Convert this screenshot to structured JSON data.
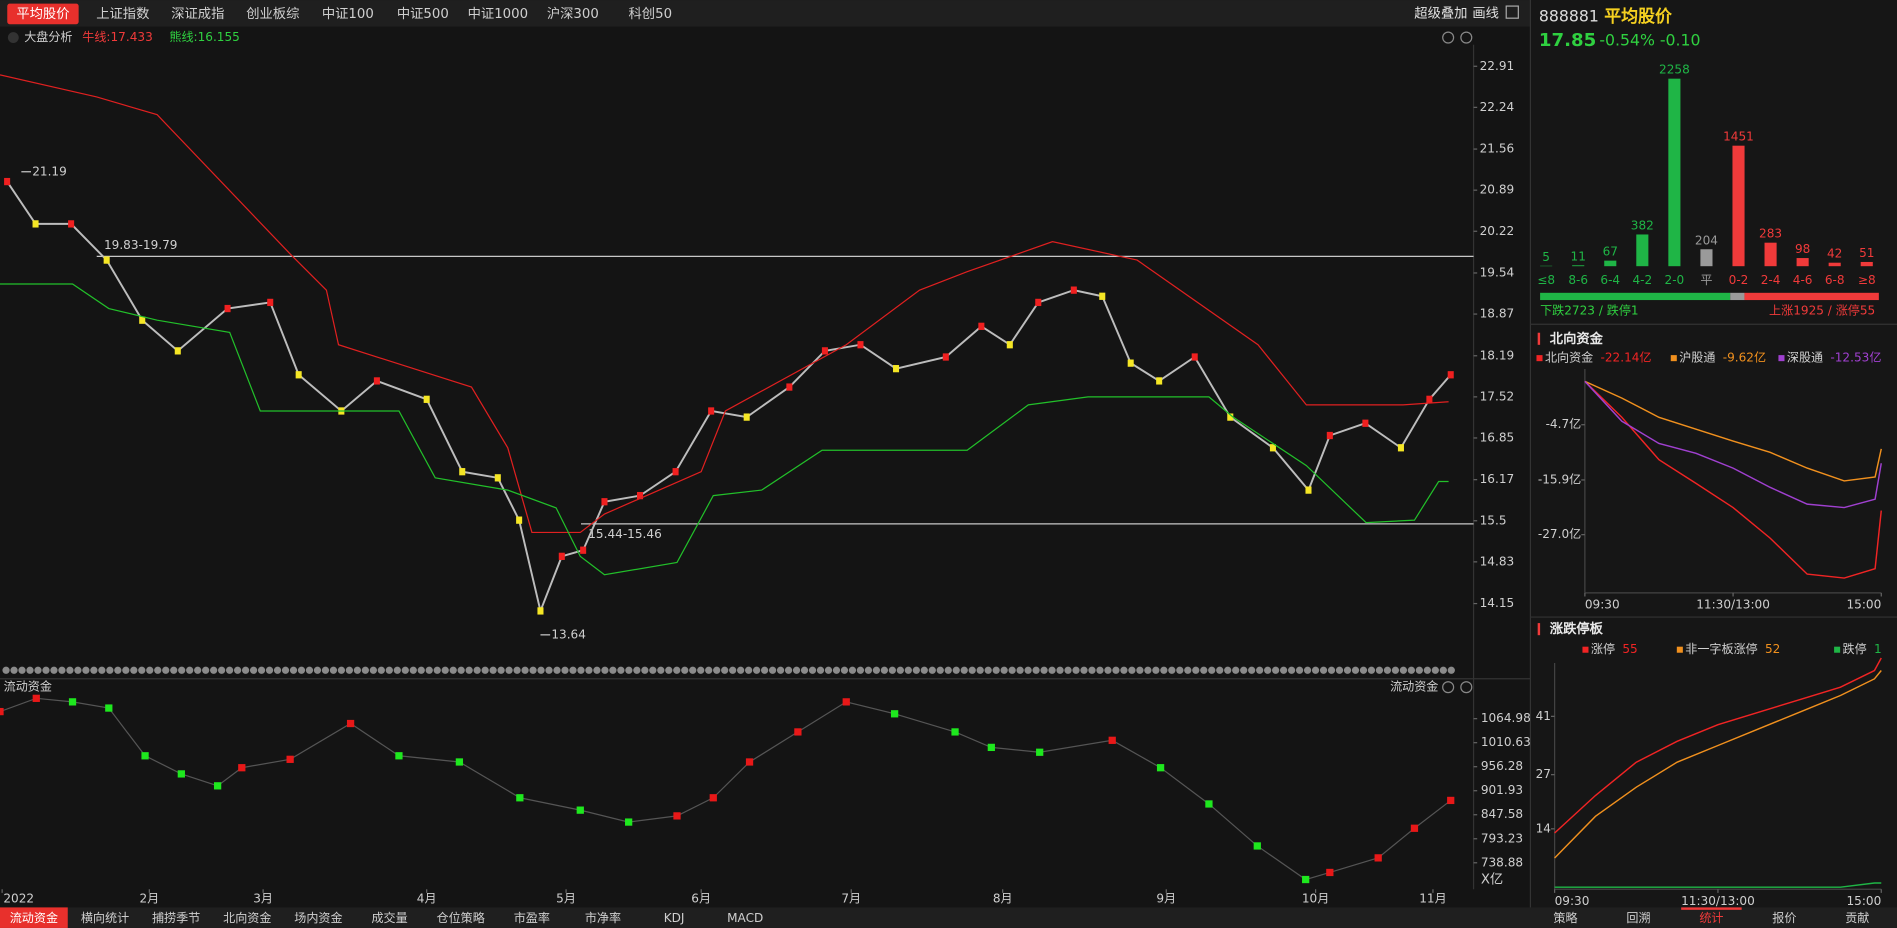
{
  "tabs": [
    "平均股价",
    "上证指数",
    "深证成指",
    "创业板综",
    "中证100",
    "中证500",
    "中证1000",
    "沪深300",
    "科创50"
  ],
  "tools": [
    "超级叠加",
    "画线"
  ],
  "main_chart": {
    "type": "line",
    "title": "大盘分析",
    "bull_label": "牛线:17.433",
    "bear_label": "熊线:16.155",
    "xlim": [
      0,
      205
    ],
    "ylim": [
      13.24,
      23.26
    ],
    "yticks": [
      22.91,
      22.24,
      21.56,
      20.89,
      20.22,
      19.54,
      18.87,
      18.19,
      17.52,
      16.85,
      16.17,
      15.5,
      14.83,
      14.15
    ],
    "xticks": [
      {
        "value": 0.3,
        "label": "2022"
      },
      {
        "value": 21,
        "label": "2月"
      },
      {
        "value": 37,
        "label": "3月"
      },
      {
        "value": 60,
        "label": "4月"
      },
      {
        "value": 79.6,
        "label": "5月"
      },
      {
        "value": 98.6,
        "label": "6月"
      },
      {
        "value": 119.7,
        "label": "7月"
      },
      {
        "value": 141,
        "label": "8月"
      },
      {
        "value": 164,
        "label": "9月"
      },
      {
        "value": 185,
        "label": "10月"
      },
      {
        "value": 201.5,
        "label": "11月"
      }
    ],
    "series": [
      {
        "color": "#bdbdbd",
        "x": [
          1,
          5,
          10,
          15,
          20,
          25,
          32,
          38,
          42,
          48,
          53,
          60,
          65,
          70,
          73,
          76,
          79,
          82,
          85,
          90,
          95,
          100,
          105,
          111,
          116,
          121,
          126,
          133,
          138,
          142,
          146,
          151,
          155,
          159,
          163,
          168,
          173,
          179,
          184,
          187,
          192,
          197,
          201,
          204
        ],
        "values": [
          21.03,
          20.34,
          20.34,
          19.75,
          18.77,
          18.27,
          18.96,
          19.06,
          17.88,
          17.29,
          17.78,
          17.48,
          16.3,
          16.2,
          15.51,
          14.03,
          14.92,
          15.02,
          15.81,
          15.91,
          16.3,
          17.29,
          17.19,
          17.68,
          18.27,
          18.37,
          17.98,
          18.17,
          18.67,
          18.37,
          19.06,
          19.26,
          19.16,
          18.07,
          17.78,
          18.17,
          17.19,
          16.69,
          16.0,
          16.89,
          17.09,
          16.69,
          17.48,
          17.88
        ]
      },
      {
        "color": "#e02020",
        "x": [
          0,
          13.6,
          22.1,
          40.8,
          45.9,
          47.6,
          66.3,
          71.4,
          74.8,
          81.6,
          85,
          98.6,
          102,
          119,
          129.3,
          136,
          148,
          159.9,
          176.9,
          183.7,
          197.3,
          203.7
        ],
        "values": [
          22.77,
          22.41,
          22.12,
          19.85,
          19.26,
          18.37,
          17.68,
          16.69,
          15.31,
          15.31,
          15.61,
          16.3,
          17.29,
          18.37,
          19.26,
          19.56,
          20.05,
          19.75,
          18.37,
          17.39,
          17.39,
          17.44
        ]
      },
      {
        "color": "#22c02a",
        "x": [
          0,
          10.2,
          15.3,
          22.1,
          32.3,
          36.6,
          56.1,
          61.2,
          71.4,
          78.2,
          81.6,
          85,
          95.2,
          100.3,
          107.1,
          115.6,
          136,
          144.6,
          153,
          170,
          173.4,
          183.7,
          192.1,
          198.9,
          202.3,
          203.7
        ],
        "values": [
          19.36,
          19.36,
          18.96,
          18.77,
          18.57,
          17.29,
          17.29,
          16.2,
          16.0,
          15.71,
          14.92,
          14.62,
          14.82,
          15.91,
          16.0,
          16.65,
          16.65,
          17.39,
          17.52,
          17.52,
          17.19,
          16.4,
          15.47,
          15.51,
          16.14,
          16.14
        ]
      }
    ],
    "levels": [
      {
        "label": "19.83-19.79",
        "value": 19.81,
        "x": 13.6
      },
      {
        "label": "15.44-15.46",
        "value": 15.45,
        "x": 81.7
      }
    ],
    "extremes": [
      {
        "value": 21.19,
        "x": 3
      },
      {
        "value": 13.64,
        "x": 76
      }
    ]
  },
  "flow_chart": {
    "type": "line",
    "title": "流动资金",
    "unit": "X亿",
    "ylim": [
      679,
      1117
    ],
    "yticks": [
      1064.98,
      1010.63,
      956.28,
      901.93,
      847.58,
      793.23,
      738.88
    ],
    "x": [
      0,
      5.1,
      10.2,
      15.3,
      20.4,
      25.5,
      30.6,
      34,
      40.8,
      49.3,
      56.1,
      64.6,
      73.1,
      81.6,
      88.4,
      95.2,
      100.3,
      105.4,
      112.2,
      119,
      125.8,
      134.3,
      139.4,
      146.2,
      156.4,
      163.2,
      170,
      176.8,
      183.6,
      187,
      193.8,
      198.9,
      204
    ],
    "values": [
      1081,
      1111,
      1103,
      1089,
      981,
      940,
      913,
      954,
      973,
      1054,
      981,
      967,
      886,
      858,
      831,
      845,
      886,
      967,
      1035,
      1103,
      1076,
      1035,
      1000,
      989,
      1016,
      954,
      872,
      777,
      701,
      717,
      750,
      817,
      880
    ]
  },
  "quote": {
    "code": "888881",
    "name": "平均股价",
    "price": "17.85",
    "change_pct": "-0.54%",
    "change": "-0.10"
  },
  "distribution": {
    "type": "bar",
    "categories": [
      "≤8",
      "8-6",
      "6-4",
      "4-2",
      "2-0",
      "平",
      "0-2",
      "2-4",
      "4-6",
      "6-8",
      "≥8"
    ],
    "values": [
      5,
      11,
      67,
      382,
      2258,
      204,
      1451,
      283,
      98,
      42,
      51
    ],
    "colors": [
      "#1fb546",
      "#1fb546",
      "#1fb546",
      "#1fb546",
      "#1fb546",
      "#9a9a9a",
      "#f03a3a",
      "#f03a3a",
      "#f03a3a",
      "#f03a3a",
      "#f03a3a"
    ],
    "down_label": "下跌2723 / 跌停1",
    "up_label": "上涨1925 / 涨停55"
  },
  "north": {
    "type": "line",
    "title": "北向资金",
    "xlim": [
      0,
      240
    ],
    "ylim": [
      -38.8,
      6.6
    ],
    "yticks": [
      {
        "value": -4.7,
        "label": "-4.7亿"
      },
      {
        "value": -15.9,
        "label": "-15.9亿"
      },
      {
        "value": -27.0,
        "label": "-27.0亿"
      }
    ],
    "xticks": [
      {
        "value": 0,
        "label": "09:30"
      },
      {
        "value": 120,
        "label": "11:30/13:00"
      },
      {
        "value": 240,
        "label": "15:00"
      }
    ],
    "x": [
      0,
      30,
      60,
      90,
      120,
      150,
      180,
      210,
      235,
      240
    ],
    "series": [
      {
        "name": "北向资金",
        "value_label": "-22.14亿",
        "color": "#f02424",
        "values": [
          4.1,
          -3.2,
          -11.8,
          -16.6,
          -21.5,
          -27.7,
          -35.0,
          -35.8,
          -33.9,
          -22.1
        ]
      },
      {
        "name": "沪股通",
        "value_label": "-9.62亿",
        "color": "#f0901e",
        "values": [
          4.1,
          0.7,
          -3.2,
          -5.6,
          -8.0,
          -10.3,
          -13.5,
          -16.1,
          -15.3,
          -9.6
        ]
      },
      {
        "name": "深股通",
        "value_label": "-12.53亿",
        "color": "#a040d0",
        "values": [
          4.1,
          -4.0,
          -8.5,
          -10.5,
          -13.5,
          -17.4,
          -20.8,
          -21.5,
          -19.8,
          -12.5
        ]
      }
    ]
  },
  "limit": {
    "type": "line",
    "title": "涨跌停板",
    "xlim": [
      0,
      240
    ],
    "ylim": [
      -0.5,
      53.8
    ],
    "yticks": [
      14,
      27,
      41
    ],
    "xticks": [
      {
        "value": 0,
        "label": "09:30"
      },
      {
        "value": 120,
        "label": "11:30/13:00"
      },
      {
        "value": 240,
        "label": "15:00"
      }
    ],
    "x": [
      0,
      30,
      60,
      90,
      120,
      150,
      180,
      210,
      235,
      240
    ],
    "series": [
      {
        "name": "涨停",
        "value_label": 55,
        "color": "#f02424",
        "values": [
          13,
          22,
          30,
          35,
          39,
          42,
          45,
          48,
          52,
          55
        ]
      },
      {
        "name": "非一字板涨停",
        "value_label": 52,
        "color": "#f0901e",
        "values": [
          7,
          17,
          24,
          30,
          34,
          38,
          42,
          46,
          50,
          52
        ]
      },
      {
        "name": "跌停",
        "value_label": 1,
        "color": "#1fb546",
        "values": [
          0,
          0,
          0,
          0,
          0,
          0,
          0,
          0,
          1,
          1
        ]
      }
    ]
  },
  "bottom_tabs": [
    "流动资金",
    "横向统计",
    "捕捞季节",
    "北向资金",
    "场内资金",
    "成交量",
    "仓位策略",
    "市盈率",
    "市净率",
    "KDJ",
    "MACD"
  ],
  "side_tabs": [
    "策略",
    "回溯",
    "统计",
    "报价",
    "贡献"
  ]
}
